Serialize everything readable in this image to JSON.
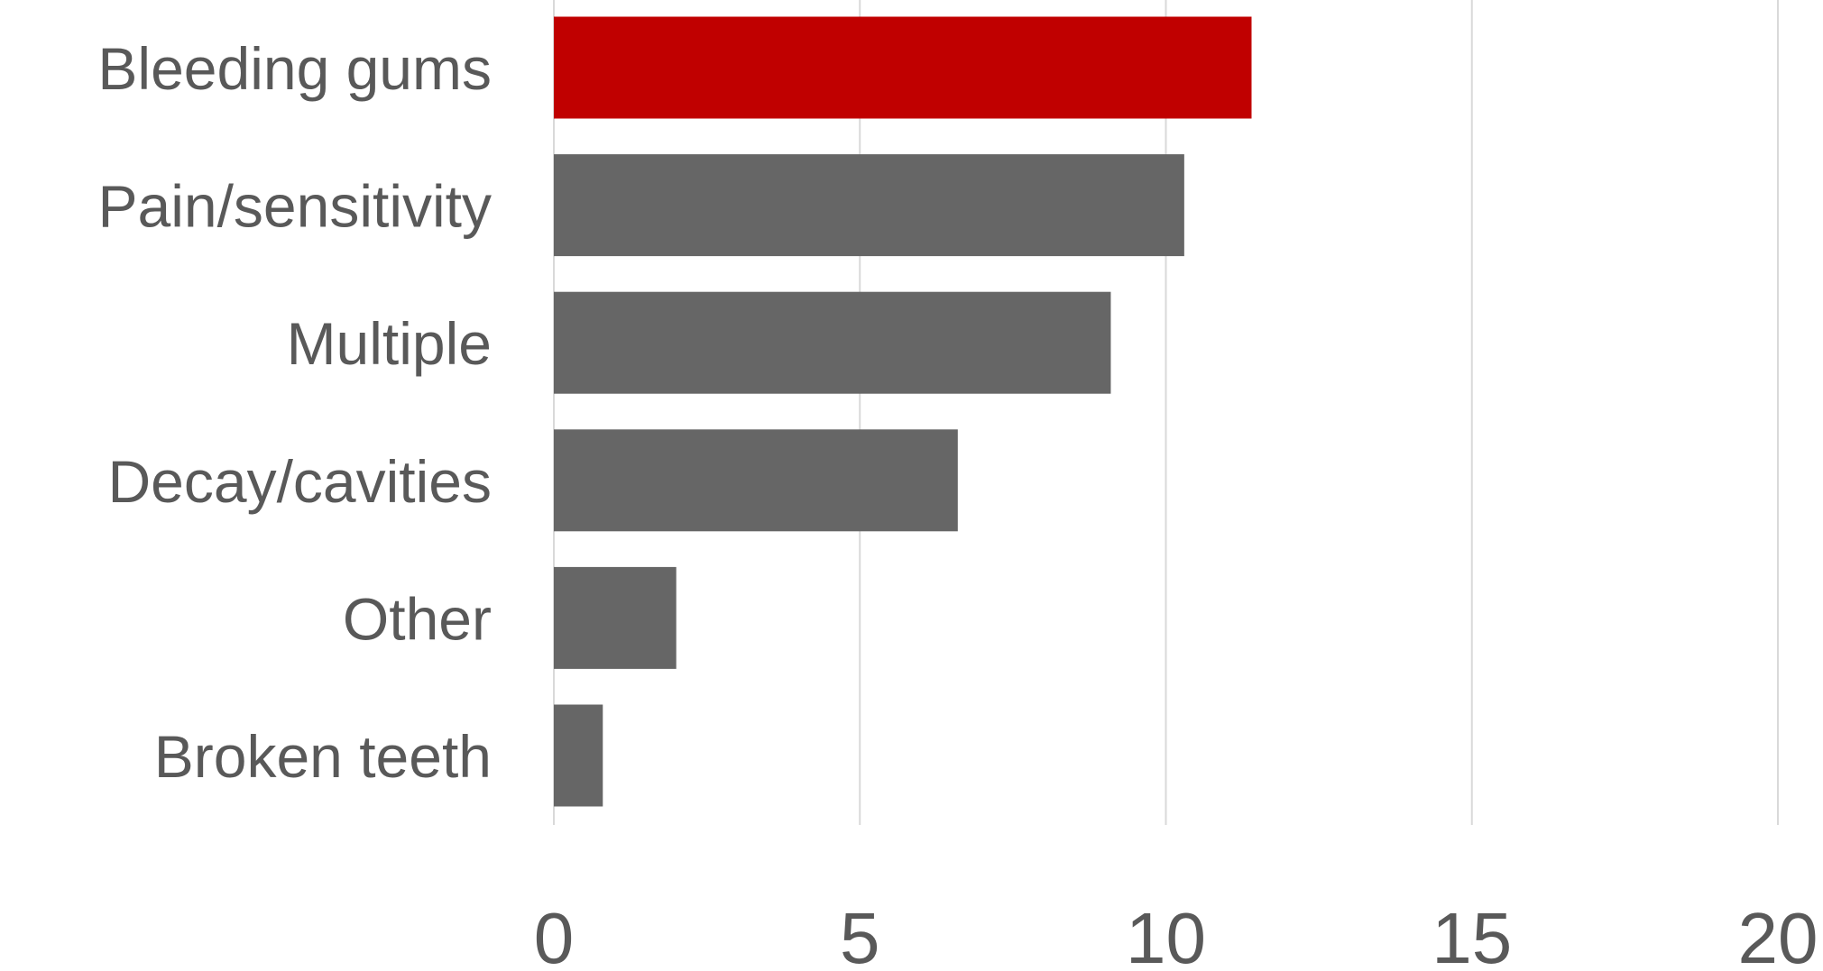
{
  "chart_data": {
    "type": "bar",
    "orientation": "horizontal",
    "categories": [
      "Bleeding gums",
      "Pain/sensitivity",
      "Multiple",
      "Decay/cavities",
      "Other",
      "Broken teeth"
    ],
    "values": [
      11.4,
      10.3,
      9.1,
      6.6,
      2.0,
      0.8
    ],
    "highlight_index": 0,
    "xlim": [
      0,
      20
    ],
    "xticks": [
      "0",
      "5",
      "10",
      "15",
      "20"
    ],
    "grid": true,
    "title": "",
    "xlabel": "",
    "ylabel": "",
    "colors": {
      "highlight": "#c00000",
      "default": "#666666",
      "grid": "#d9d9d9",
      "text": "#595959"
    }
  }
}
